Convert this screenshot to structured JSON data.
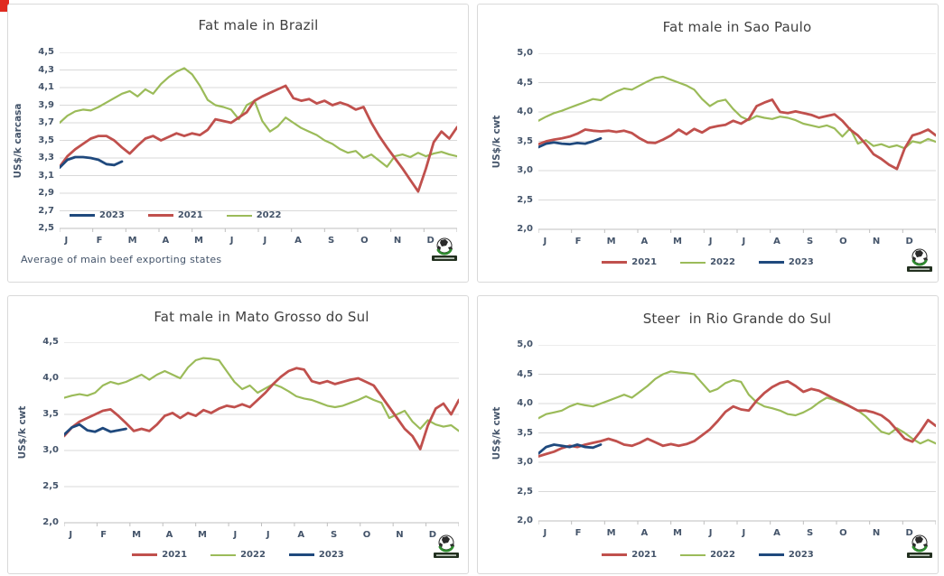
{
  "window": {
    "background": "#ffffff",
    "corner_marker_color": "#e02b20"
  },
  "colors": {
    "2021": "#C0504D",
    "2022": "#9BBB59",
    "2023": "#1F497D",
    "gridline": "#D9D9D9",
    "axis_line": "#BFBFBF",
    "axis_text": "#44546A",
    "title_text": "#404040",
    "panel_border": "#D9D9D9",
    "logo_green": "#2e8b2e",
    "logo_dark": "#22301f"
  },
  "months": [
    "J",
    "F",
    "M",
    "A",
    "M",
    "J",
    "J",
    "A",
    "S",
    "O",
    "N",
    "D"
  ],
  "footnote": "Average of main beef exporting states",
  "logo_name": "world-globe-logo",
  "chart_data": [
    {
      "type": "line",
      "title": "Fat male in Brazil",
      "ylabel": "US$/k carcasa",
      "ylim": [
        2.5,
        4.5
      ],
      "ystep": 0.2,
      "x_axis_note": "weekly values Jan-Dec, month-initial tick labels",
      "legend_position": "inside-bottom-left",
      "legend_order": [
        "2023",
        "2021",
        "2022"
      ],
      "series": [
        {
          "name": "2021",
          "values": [
            3.2,
            3.32,
            3.4,
            3.46,
            3.52,
            3.55,
            3.55,
            3.5,
            3.42,
            3.35,
            3.44,
            3.52,
            3.55,
            3.5,
            3.54,
            3.58,
            3.55,
            3.58,
            3.56,
            3.62,
            3.74,
            3.72,
            3.7,
            3.76,
            3.82,
            3.95,
            4.0,
            4.04,
            4.08,
            4.12,
            3.98,
            3.95,
            3.97,
            3.92,
            3.95,
            3.9,
            3.93,
            3.9,
            3.85,
            3.88,
            3.7,
            3.55,
            3.42,
            3.3,
            3.18,
            3.05,
            2.92,
            3.18,
            3.48,
            3.6,
            3.52,
            3.65
          ]
        },
        {
          "name": "2022",
          "values": [
            3.7,
            3.78,
            3.83,
            3.85,
            3.84,
            3.88,
            3.93,
            3.98,
            4.03,
            4.06,
            4.0,
            4.08,
            4.03,
            4.14,
            4.22,
            4.28,
            4.32,
            4.25,
            4.12,
            3.96,
            3.9,
            3.88,
            3.85,
            3.74,
            3.9,
            3.95,
            3.72,
            3.6,
            3.66,
            3.76,
            3.7,
            3.64,
            3.6,
            3.56,
            3.5,
            3.46,
            3.4,
            3.36,
            3.38,
            3.3,
            3.34,
            3.27,
            3.2,
            3.32,
            3.34,
            3.31,
            3.36,
            3.32,
            3.35,
            3.37,
            3.34,
            3.32
          ]
        },
        {
          "name": "2023",
          "values": [
            3.19,
            3.28,
            3.31,
            3.31,
            3.3,
            3.28,
            3.23,
            3.22,
            3.26
          ]
        }
      ]
    },
    {
      "type": "line",
      "title": "Fat male in Sao Paulo",
      "ylabel": "US$/k cwt",
      "ylim": [
        2.0,
        5.0
      ],
      "ystep": 0.5,
      "x_axis_note": "weekly values Jan-Dec, month-initial tick labels",
      "legend_position": "below-center",
      "legend_order": [
        "2021",
        "2022",
        "2023"
      ],
      "series": [
        {
          "name": "2021",
          "values": [
            3.45,
            3.5,
            3.53,
            3.55,
            3.58,
            3.63,
            3.7,
            3.68,
            3.67,
            3.68,
            3.66,
            3.68,
            3.64,
            3.55,
            3.48,
            3.47,
            3.53,
            3.6,
            3.7,
            3.62,
            3.71,
            3.65,
            3.73,
            3.76,
            3.78,
            3.85,
            3.8,
            3.88,
            4.1,
            4.16,
            4.21,
            4.0,
            3.98,
            4.01,
            3.98,
            3.95,
            3.9,
            3.93,
            3.96,
            3.85,
            3.7,
            3.6,
            3.45,
            3.28,
            3.2,
            3.1,
            3.03,
            3.38,
            3.6,
            3.64,
            3.7,
            3.6
          ]
        },
        {
          "name": "2022",
          "values": [
            3.85,
            3.92,
            3.98,
            4.02,
            4.07,
            4.12,
            4.17,
            4.22,
            4.2,
            4.28,
            4.35,
            4.4,
            4.38,
            4.45,
            4.52,
            4.58,
            4.6,
            4.55,
            4.5,
            4.45,
            4.38,
            4.22,
            4.1,
            4.18,
            4.21,
            4.05,
            3.92,
            3.86,
            3.93,
            3.9,
            3.88,
            3.92,
            3.9,
            3.86,
            3.8,
            3.77,
            3.74,
            3.77,
            3.72,
            3.58,
            3.72,
            3.46,
            3.52,
            3.42,
            3.45,
            3.4,
            3.43,
            3.38,
            3.5,
            3.47,
            3.54,
            3.49
          ]
        },
        {
          "name": "2023",
          "values": [
            3.4,
            3.46,
            3.48,
            3.46,
            3.45,
            3.47,
            3.46,
            3.5,
            3.55
          ]
        }
      ]
    },
    {
      "type": "line",
      "title": "Fat male in Mato Grosso do Sul",
      "ylabel": "US$/k cwt",
      "ylim": [
        2.0,
        4.5
      ],
      "ystep": 0.5,
      "x_axis_note": "weekly values Jan-Dec, month-initial tick labels",
      "legend_position": "below-center",
      "legend_order": [
        "2021",
        "2022",
        "2023"
      ],
      "series": [
        {
          "name": "2021",
          "values": [
            3.2,
            3.32,
            3.4,
            3.45,
            3.5,
            3.55,
            3.57,
            3.48,
            3.38,
            3.27,
            3.3,
            3.27,
            3.36,
            3.48,
            3.52,
            3.45,
            3.52,
            3.48,
            3.56,
            3.52,
            3.58,
            3.62,
            3.6,
            3.64,
            3.6,
            3.7,
            3.8,
            3.92,
            4.02,
            4.1,
            4.14,
            4.12,
            3.96,
            3.93,
            3.96,
            3.92,
            3.95,
            3.98,
            4.0,
            3.95,
            3.9,
            3.75,
            3.6,
            3.45,
            3.3,
            3.2,
            3.02,
            3.35,
            3.58,
            3.65,
            3.5,
            3.7
          ]
        },
        {
          "name": "2022",
          "values": [
            3.73,
            3.76,
            3.78,
            3.76,
            3.8,
            3.9,
            3.95,
            3.92,
            3.95,
            4.0,
            4.05,
            3.98,
            4.05,
            4.1,
            4.05,
            4.0,
            4.15,
            4.25,
            4.28,
            4.27,
            4.25,
            4.1,
            3.95,
            3.85,
            3.9,
            3.8,
            3.86,
            3.92,
            3.88,
            3.82,
            3.75,
            3.72,
            3.7,
            3.66,
            3.62,
            3.6,
            3.62,
            3.66,
            3.7,
            3.75,
            3.7,
            3.66,
            3.45,
            3.5,
            3.55,
            3.4,
            3.3,
            3.42,
            3.36,
            3.33,
            3.35,
            3.27
          ]
        },
        {
          "name": "2023",
          "values": [
            3.22,
            3.32,
            3.36,
            3.28,
            3.26,
            3.31,
            3.26,
            3.28,
            3.3
          ]
        }
      ]
    },
    {
      "type": "line",
      "title": "Steer  in Rio Grande do Sul",
      "ylabel": "US$/k cwt",
      "ylim": [
        2.0,
        5.0
      ],
      "ystep": 0.5,
      "x_axis_note": "weekly values Jan-Dec, month-initial tick labels",
      "legend_position": "below-center",
      "legend_order": [
        "2021",
        "2022",
        "2023"
      ],
      "series": [
        {
          "name": "2021",
          "values": [
            3.1,
            3.14,
            3.18,
            3.24,
            3.28,
            3.26,
            3.3,
            3.33,
            3.36,
            3.4,
            3.36,
            3.3,
            3.28,
            3.33,
            3.4,
            3.34,
            3.28,
            3.31,
            3.28,
            3.31,
            3.36,
            3.46,
            3.56,
            3.7,
            3.86,
            3.95,
            3.9,
            3.88,
            4.05,
            4.18,
            4.28,
            4.35,
            4.38,
            4.3,
            4.2,
            4.25,
            4.22,
            4.15,
            4.08,
            4.02,
            3.95,
            3.88,
            3.88,
            3.85,
            3.8,
            3.7,
            3.55,
            3.4,
            3.35,
            3.52,
            3.72,
            3.62
          ]
        },
        {
          "name": "2022",
          "values": [
            3.75,
            3.82,
            3.85,
            3.88,
            3.95,
            4.0,
            3.97,
            3.95,
            4.0,
            4.05,
            4.1,
            4.15,
            4.1,
            4.2,
            4.3,
            4.42,
            4.5,
            4.55,
            4.53,
            4.52,
            4.5,
            4.35,
            4.2,
            4.25,
            4.35,
            4.4,
            4.37,
            4.15,
            4.02,
            3.95,
            3.92,
            3.88,
            3.82,
            3.8,
            3.85,
            3.92,
            4.02,
            4.1,
            4.06,
            4.0,
            3.95,
            3.88,
            3.78,
            3.65,
            3.52,
            3.48,
            3.58,
            3.5,
            3.4,
            3.32,
            3.38,
            3.32
          ]
        },
        {
          "name": "2023",
          "values": [
            3.15,
            3.26,
            3.3,
            3.28,
            3.26,
            3.3,
            3.26,
            3.25,
            3.3
          ]
        }
      ]
    }
  ]
}
